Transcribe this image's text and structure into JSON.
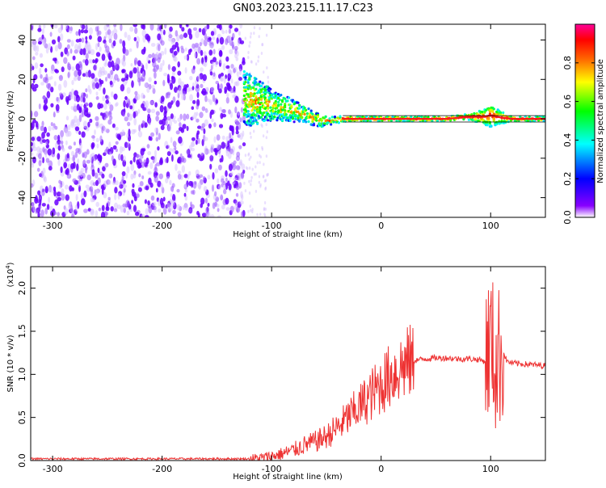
{
  "title": "GN03.2023.215.11.17.C23",
  "chart_data": [
    {
      "type": "heatmap",
      "xlabel": "Height of straight line (km)",
      "ylabel": "Frequency (Hz)",
      "xlim": [
        -320,
        150
      ],
      "ylim": [
        -50,
        48
      ],
      "xticks": [
        -300,
        -200,
        -100,
        0,
        100
      ],
      "yticks": [
        -40,
        -20,
        0,
        20,
        40
      ],
      "colorbar": {
        "label": "Normalized spectral amplitude",
        "range": [
          0,
          1
        ],
        "ticks": [
          "0.0",
          "0.2",
          "0.4",
          "0.6",
          "0.8"
        ],
        "stops": [
          "#ffffff",
          "#8800ff",
          "#0000ff",
          "#00ffff",
          "#00ff00",
          "#ffff00",
          "#ff6600",
          "#ff0000",
          "#ff0099"
        ]
      },
      "noise_region": {
        "x": [
          -320,
          -125
        ],
        "level": 0.3
      },
      "ridge": {
        "x": [
          -125,
          -115,
          -105,
          -95,
          -85,
          -75,
          -65,
          -55,
          -45,
          -35,
          -20,
          0,
          20,
          40,
          60,
          80,
          95,
          100,
          105,
          120,
          150
        ],
        "freq": [
          10,
          9,
          8,
          6,
          5,
          3,
          1,
          -1,
          -1,
          0,
          0,
          0,
          0,
          0,
          0,
          1,
          1,
          2,
          1,
          0,
          0
        ],
        "width": [
          14,
          12,
          9,
          7,
          6,
          5,
          4,
          3,
          2,
          1.5,
          1.2,
          1.2,
          1.2,
          1.2,
          1.2,
          1.5,
          4,
          6,
          4,
          1.2,
          1.2
        ]
      }
    },
    {
      "type": "line",
      "xlabel": "Height of straight line (km)",
      "ylabel": "SNR (10 * v/v)",
      "yscale_label": "(x10",
      "yscale_exp": "4",
      "yscale_close": ")",
      "xlim": [
        -320,
        150
      ],
      "ylim": [
        0,
        2.25
      ],
      "xticks": [
        -300,
        -200,
        -100,
        0,
        100
      ],
      "yticks": [
        "0.0",
        "0.5",
        "1.0",
        "1.5",
        "2.0"
      ],
      "color": "#ee3333",
      "series": [
        {
          "x": [
            -320,
            -250,
            -200,
            -150,
            -120,
            -110,
            -100,
            -90,
            -80,
            -70,
            -60,
            -50,
            -40,
            -30,
            -20,
            -10,
            0,
            10,
            20,
            30,
            40,
            50,
            60,
            70,
            80,
            90,
            95,
            100,
            105,
            110,
            115,
            120,
            130,
            140,
            150
          ],
          "values": [
            0.02,
            0.02,
            0.02,
            0.02,
            0.02,
            0.03,
            0.05,
            0.08,
            0.12,
            0.18,
            0.22,
            0.28,
            0.38,
            0.5,
            0.62,
            0.75,
            0.88,
            1.0,
            1.1,
            1.16,
            1.18,
            1.19,
            1.19,
            1.18,
            1.18,
            1.17,
            1.15,
            1.4,
            1.1,
            1.3,
            1.15,
            1.13,
            1.12,
            1.11,
            1.1
          ]
        }
      ]
    }
  ]
}
